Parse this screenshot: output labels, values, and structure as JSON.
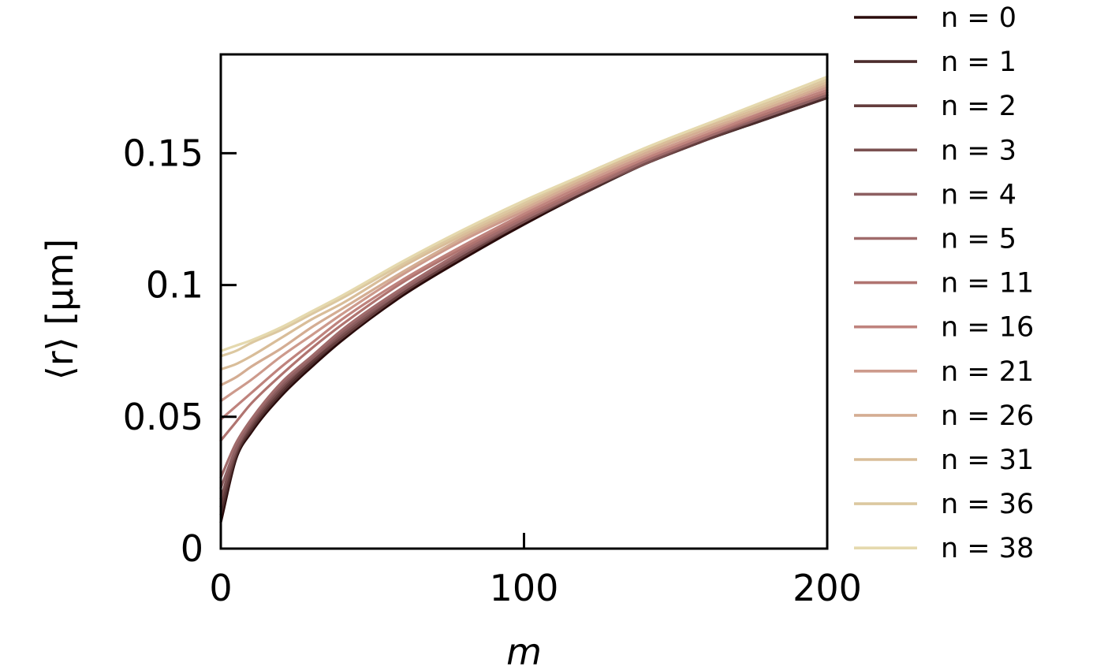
{
  "chart_data": {
    "type": "line",
    "xlabel": "m",
    "ylabel": "⟨r⟩ [μm]",
    "xlim": [
      0,
      200
    ],
    "ylim": [
      0,
      0.1875
    ],
    "xticks": [
      {
        "value": 0,
        "label": "0"
      },
      {
        "value": 100,
        "label": "100"
      },
      {
        "value": 200,
        "label": "200"
      }
    ],
    "yticks": [
      {
        "value": 0,
        "label": "0"
      },
      {
        "value": 0.05,
        "label": "0.05"
      },
      {
        "value": 0.1,
        "label": "0.1"
      },
      {
        "value": 0.15,
        "label": "0.15"
      }
    ],
    "grid": false,
    "legend_position": "outside-right",
    "x": [
      0,
      5,
      10,
      20,
      30,
      40,
      60,
      80,
      100,
      120,
      140,
      160,
      180,
      200
    ],
    "series": [
      {
        "name": "n = 0",
        "color": "#2a0b0b",
        "values": [
          0.01,
          0.034,
          0.044,
          0.058,
          0.069,
          0.079,
          0.096,
          0.11,
          0.123,
          0.135,
          0.146,
          0.155,
          0.163,
          0.171
        ]
      },
      {
        "name": "n = 1",
        "color": "#4b2c2c",
        "values": [
          0.013,
          0.035,
          0.045,
          0.059,
          0.07,
          0.08,
          0.097,
          0.111,
          0.124,
          0.135,
          0.146,
          0.155,
          0.163,
          0.171
        ]
      },
      {
        "name": "n = 2",
        "color": "#643d3d",
        "values": [
          0.016,
          0.036,
          0.046,
          0.06,
          0.071,
          0.08,
          0.097,
          0.111,
          0.124,
          0.136,
          0.146,
          0.155,
          0.164,
          0.172
        ]
      },
      {
        "name": "n = 3",
        "color": "#7a5050",
        "values": [
          0.019,
          0.037,
          0.047,
          0.061,
          0.072,
          0.081,
          0.098,
          0.112,
          0.124,
          0.136,
          0.146,
          0.156,
          0.164,
          0.172
        ]
      },
      {
        "name": "n = 4",
        "color": "#8d5f61",
        "values": [
          0.023,
          0.038,
          0.048,
          0.062,
          0.072,
          0.082,
          0.098,
          0.112,
          0.125,
          0.136,
          0.147,
          0.156,
          0.164,
          0.172
        ]
      },
      {
        "name": "n = 5",
        "color": "#a06b6b",
        "values": [
          0.027,
          0.04,
          0.049,
          0.063,
          0.073,
          0.083,
          0.099,
          0.113,
          0.125,
          0.136,
          0.147,
          0.156,
          0.165,
          0.173
        ]
      },
      {
        "name": "n = 11",
        "color": "#b07470",
        "values": [
          0.041,
          0.048,
          0.055,
          0.066,
          0.076,
          0.085,
          0.101,
          0.114,
          0.126,
          0.137,
          0.148,
          0.157,
          0.165,
          0.173
        ]
      },
      {
        "name": "n = 16",
        "color": "#bf837d",
        "values": [
          0.049,
          0.054,
          0.059,
          0.069,
          0.078,
          0.087,
          0.102,
          0.115,
          0.127,
          0.138,
          0.148,
          0.157,
          0.166,
          0.174
        ]
      },
      {
        "name": "n = 21",
        "color": "#cd9a8c",
        "values": [
          0.056,
          0.06,
          0.064,
          0.073,
          0.081,
          0.089,
          0.104,
          0.117,
          0.128,
          0.139,
          0.149,
          0.158,
          0.167,
          0.175
        ]
      },
      {
        "name": "n = 26",
        "color": "#d4ad93",
        "values": [
          0.062,
          0.065,
          0.069,
          0.076,
          0.084,
          0.091,
          0.105,
          0.118,
          0.129,
          0.14,
          0.15,
          0.159,
          0.167,
          0.176
        ]
      },
      {
        "name": "n = 31",
        "color": "#d9bd99",
        "values": [
          0.068,
          0.07,
          0.073,
          0.08,
          0.087,
          0.093,
          0.107,
          0.119,
          0.13,
          0.141,
          0.151,
          0.16,
          0.168,
          0.177
        ]
      },
      {
        "name": "n = 36",
        "color": "#dcc8a0",
        "values": [
          0.073,
          0.075,
          0.078,
          0.083,
          0.089,
          0.095,
          0.108,
          0.12,
          0.131,
          0.142,
          0.152,
          0.161,
          0.169,
          0.178
        ]
      },
      {
        "name": "n = 38",
        "color": "#e5d9ae",
        "values": [
          0.075,
          0.077,
          0.079,
          0.084,
          0.09,
          0.096,
          0.109,
          0.121,
          0.132,
          0.142,
          0.152,
          0.161,
          0.17,
          0.179
        ]
      }
    ]
  }
}
